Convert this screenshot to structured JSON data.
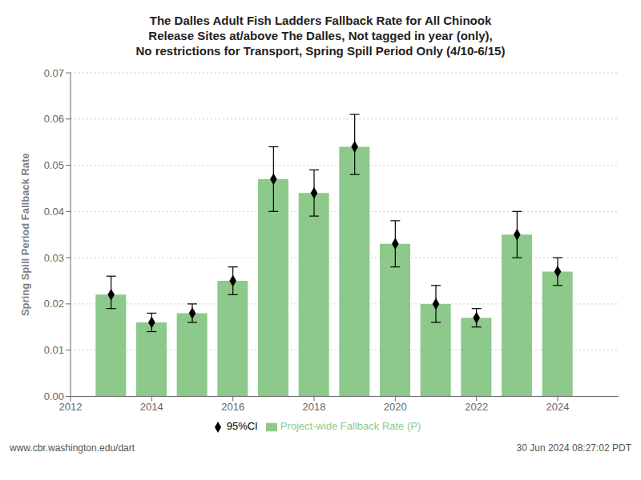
{
  "chart_data": {
    "type": "bar",
    "title": "The Dalles Adult Fish Ladders Fallback Rate for All Chinook\nRelease Sites at/above The Dalles, Not tagged in year (only),\nNo restrictions for Transport, Spring Spill Period Only (4/10-6/15)",
    "ylabel": "Spring Spill Period Fallback Rate",
    "x": [
      2013,
      2014,
      2015,
      2016,
      2017,
      2018,
      2019,
      2020,
      2021,
      2022,
      2023,
      2024
    ],
    "series": [
      {
        "name": "Project-wide Fallback Rate (P)",
        "type": "bar",
        "color": "#8DC98A",
        "values": [
          0.022,
          0.016,
          0.018,
          0.025,
          0.047,
          0.044,
          0.054,
          0.033,
          0.02,
          0.017,
          0.035,
          0.027
        ]
      },
      {
        "name": "95%CI",
        "type": "scatter",
        "color": "black",
        "marker": "diamond",
        "values": [
          0.022,
          0.016,
          0.018,
          0.025,
          0.047,
          0.044,
          0.054,
          0.033,
          0.02,
          0.017,
          0.035,
          0.027
        ],
        "ci_lower": [
          0.019,
          0.014,
          0.016,
          0.022,
          0.04,
          0.039,
          0.048,
          0.028,
          0.016,
          0.015,
          0.03,
          0.024
        ],
        "ci_upper": [
          0.026,
          0.018,
          0.02,
          0.028,
          0.054,
          0.049,
          0.061,
          0.038,
          0.024,
          0.019,
          0.04,
          0.03
        ]
      }
    ],
    "xlim": [
      2012,
      2025.5
    ],
    "xticks": [
      2012,
      2014,
      2016,
      2018,
      2020,
      2022,
      2024
    ],
    "ylim": [
      0,
      0.07
    ],
    "yticks": [
      {
        "value": 0,
        "label": "0.00"
      },
      {
        "value": 0.01,
        "label": "0.01"
      },
      {
        "value": 0.02,
        "label": "0.02"
      },
      {
        "value": 0.03,
        "label": "0.03"
      },
      {
        "value": 0.04,
        "label": "0.04"
      },
      {
        "value": 0.05,
        "label": "0.05"
      },
      {
        "value": 0.06,
        "label": "0.06"
      },
      {
        "value": 0.07,
        "label": "0.07"
      }
    ],
    "grid": true,
    "legend": "bottom",
    "annotations": [
      "www.cbr.washington.edu/dart",
      "30 Jun 2024 08:27:02 PDT"
    ]
  }
}
